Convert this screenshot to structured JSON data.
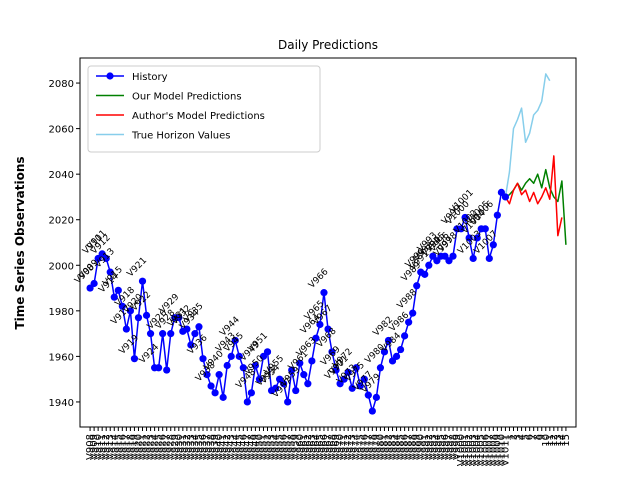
{
  "chart_data": {
    "type": "line",
    "title": "Daily Predictions",
    "xlabel": "",
    "ylabel": "Time Series Observations",
    "ylim": [
      1929,
      2091
    ],
    "yticks": [
      1940,
      1960,
      1980,
      2000,
      2020,
      2040,
      2060,
      2080
    ],
    "legend_position": "top-left",
    "history_start": 908,
    "series": [
      {
        "name": "History",
        "color": "#0000ff",
        "marker": "circle",
        "x_start": 0,
        "values": [
          1990,
          1992,
          2003,
          2005,
          2003,
          1997,
          1986,
          1989,
          1982,
          1972,
          1980,
          1959,
          1977,
          1993,
          1978,
          1970,
          1955,
          1955,
          1970,
          1954,
          1970,
          1977,
          1977,
          1971,
          1972,
          1965,
          1970,
          1973,
          1959,
          1952,
          1947,
          1944,
          1952,
          1942,
          1956,
          1960,
          1967,
          1960,
          1955,
          1940,
          1944,
          1956,
          1950,
          1960,
          1962,
          1945,
          1946,
          1950,
          1948,
          1940,
          1954,
          1945,
          1957,
          1952,
          1948,
          1958,
          1968,
          1974,
          1988,
          1972,
          1962,
          1954,
          1948,
          1950,
          1953,
          1946,
          1955,
          1947,
          1950,
          1943,
          1936,
          1942,
          1955,
          1962,
          1967,
          1958,
          1960,
          1963,
          1969,
          1975,
          1979,
          1991,
          1997,
          1996,
          2000,
          2004,
          2002,
          2004,
          2004,
          2002,
          2004,
          2016,
          2016,
          2021,
          2012,
          2003,
          2012,
          2016,
          2016,
          2003,
          2009,
          2022,
          2032,
          2030
        ]
      },
      {
        "name": "Our Model Predictions",
        "color": "#008000",
        "marker": "none",
        "x_start": 103,
        "values": [
          2030,
          2031,
          2033,
          2036,
          2033,
          2036,
          2038,
          2036,
          2040,
          2034,
          2042,
          2034,
          2030,
          2028,
          2037,
          2009
        ]
      },
      {
        "name": "Author's Model Predictions",
        "color": "#ff0000",
        "marker": "none",
        "x_start": 103,
        "values": [
          2030,
          2027,
          2033,
          2036,
          2031,
          2033,
          2028,
          2032,
          2027,
          2030,
          2034,
          2029,
          2048,
          2013,
          2021
        ]
      },
      {
        "name": "True Horizon Values",
        "color": "#87ceeb",
        "marker": "none",
        "x_start": 103,
        "values": [
          2030,
          2041,
          2060,
          2064,
          2069,
          2054,
          2058,
          2066,
          2068,
          2072,
          2084,
          2081
        ]
      }
    ],
    "annotations": [
      {
        "text": "V908",
        "idx": 0
      },
      {
        "text": "V909",
        "idx": 1
      },
      {
        "text": "V910",
        "idx": 2
      },
      {
        "text": "V911",
        "idx": 3
      },
      {
        "text": "V912",
        "idx": 4
      },
      {
        "text": "V913",
        "idx": 5
      },
      {
        "text": "V914",
        "idx": 6
      },
      {
        "text": "V915",
        "idx": 7
      },
      {
        "text": "V917",
        "idx": 9
      },
      {
        "text": "V918",
        "idx": 10
      },
      {
        "text": "V919",
        "idx": 11
      },
      {
        "text": "V920",
        "idx": 12
      },
      {
        "text": "V921",
        "idx": 13
      },
      {
        "text": "V922",
        "idx": 14
      },
      {
        "text": "V924",
        "idx": 16
      },
      {
        "text": "V926",
        "idx": 18
      },
      {
        "text": "V928",
        "idx": 20
      },
      {
        "text": "V929",
        "idx": 21
      },
      {
        "text": "V931",
        "idx": 23
      },
      {
        "text": "V932",
        "idx": 24
      },
      {
        "text": "V934",
        "idx": 26
      },
      {
        "text": "V935",
        "idx": 27
      },
      {
        "text": "V936",
        "idx": 28
      },
      {
        "text": "V938",
        "idx": 30
      },
      {
        "text": "V940",
        "idx": 32
      },
      {
        "text": "V943",
        "idx": 35
      },
      {
        "text": "V944",
        "idx": 36
      },
      {
        "text": "V945",
        "idx": 37
      },
      {
        "text": "V948",
        "idx": 40
      },
      {
        "text": "V949",
        "idx": 41
      },
      {
        "text": "V950",
        "idx": 42
      },
      {
        "text": "V951",
        "idx": 43
      },
      {
        "text": "V953",
        "idx": 45
      },
      {
        "text": "V954",
        "idx": 46
      },
      {
        "text": "V955",
        "idx": 47
      },
      {
        "text": "V957",
        "idx": 49
      },
      {
        "text": "V959",
        "idx": 51
      },
      {
        "text": "V961",
        "idx": 53
      },
      {
        "text": "V963",
        "idx": 55
      },
      {
        "text": "V964",
        "idx": 56
      },
      {
        "text": "V965",
        "idx": 57
      },
      {
        "text": "V966",
        "idx": 58
      },
      {
        "text": "V967",
        "idx": 59
      },
      {
        "text": "V968",
        "idx": 60
      },
      {
        "text": "V969",
        "idx": 61
      },
      {
        "text": "V970",
        "idx": 62
      },
      {
        "text": "V971",
        "idx": 63
      },
      {
        "text": "V972",
        "idx": 64
      },
      {
        "text": "V973",
        "idx": 65
      },
      {
        "text": "V975",
        "idx": 67
      },
      {
        "text": "V977",
        "idx": 69
      },
      {
        "text": "V979",
        "idx": 71
      },
      {
        "text": "V980",
        "idx": 72
      },
      {
        "text": "V982",
        "idx": 74
      },
      {
        "text": "V984",
        "idx": 76
      },
      {
        "text": "V986",
        "idx": 78
      },
      {
        "text": "V988",
        "idx": 80
      },
      {
        "text": "V989",
        "idx": 81
      },
      {
        "text": "V990",
        "idx": 82
      },
      {
        "text": "V991",
        "idx": 83
      },
      {
        "text": "V992",
        "idx": 84
      },
      {
        "text": "V993",
        "idx": 85
      },
      {
        "text": "V994",
        "idx": 86
      },
      {
        "text": "V995",
        "idx": 87
      },
      {
        "text": "V996",
        "idx": 88
      },
      {
        "text": "V997",
        "idx": 89
      },
      {
        "text": "V998",
        "idx": 90
      },
      {
        "text": "V999",
        "idx": 91
      },
      {
        "text": "V1000",
        "idx": 92
      },
      {
        "text": "V1001",
        "idx": 93
      },
      {
        "text": "V1002",
        "idx": 94
      },
      {
        "text": "V1003",
        "idx": 95
      },
      {
        "text": "V1004",
        "idx": 96
      },
      {
        "text": "V1005",
        "idx": 97
      },
      {
        "text": "V1006",
        "idx": 98
      },
      {
        "text": "V1007",
        "idx": 99
      }
    ],
    "x_tick_labels": {
      "history_prefix": "V",
      "forecast_labels": [
        "1",
        "2",
        "3",
        "4",
        "5",
        "6",
        "7",
        "8",
        "9",
        "10",
        "11",
        "12",
        "13",
        "14",
        "15"
      ]
    }
  }
}
